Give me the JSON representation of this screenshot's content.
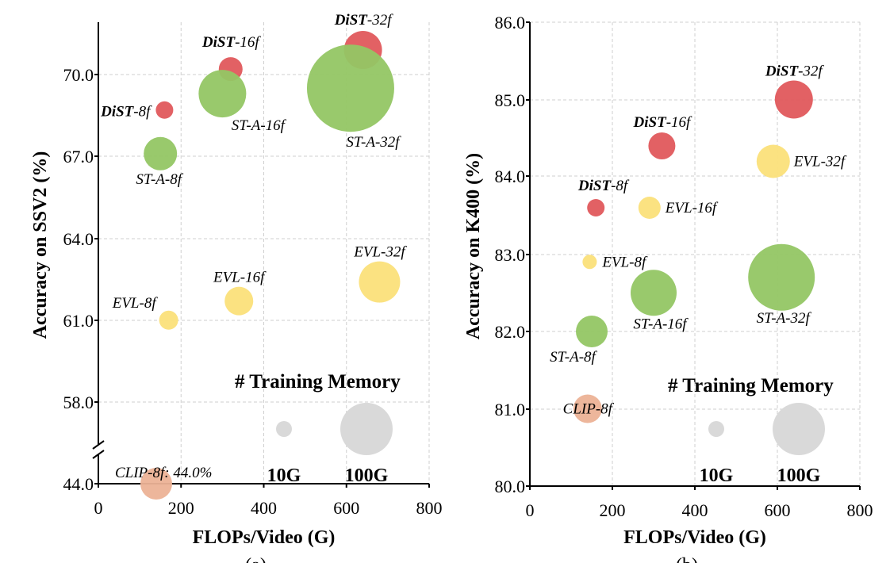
{
  "colors": {
    "dist": "#e0585c",
    "st_a": "#93c664",
    "evl": "#fbe07a",
    "clip": "#ecb296",
    "legend": "#d9d9d9"
  },
  "chart_data": [
    {
      "type": "scatter",
      "caption": "(a)",
      "xlabel": "FLOPs/Video (G)",
      "ylabel": "Accuracy on SSV2 (%)",
      "xlim": [
        0,
        800
      ],
      "x_ticks": [
        "0",
        "200",
        "400",
        "600",
        "800"
      ],
      "y_ticks": [
        "70.0",
        "67.0",
        "64.0",
        "61.0",
        "58.0",
        "44.0"
      ],
      "y_tick_values": [
        70,
        67,
        64,
        61,
        58,
        44
      ],
      "axis_break": true,
      "points": [
        {
          "label_prefix": "DiST",
          "label_suffix": "-8f",
          "family": "dist",
          "x": 160,
          "y": 68.7,
          "r": 11
        },
        {
          "label_prefix": "DiST",
          "label_suffix": "-16f",
          "family": "dist",
          "x": 320,
          "y": 70.2,
          "r": 15
        },
        {
          "label_prefix": "DiST",
          "label_suffix": "-32f",
          "family": "dist",
          "x": 640,
          "y": 70.9,
          "r": 24
        },
        {
          "label_prefix": "",
          "label_suffix": "ST-A-8f",
          "family": "st_a",
          "x": 150,
          "y": 67.1,
          "r": 21
        },
        {
          "label_prefix": "",
          "label_suffix": "ST-A-16f",
          "family": "st_a",
          "x": 300,
          "y": 69.3,
          "r": 30
        },
        {
          "label_prefix": "",
          "label_suffix": "ST-A-32f",
          "family": "st_a",
          "x": 610,
          "y": 69.5,
          "r": 55
        },
        {
          "label_prefix": "",
          "label_suffix": "EVL-8f",
          "family": "evl",
          "x": 170,
          "y": 61.0,
          "r": 12
        },
        {
          "label_prefix": "",
          "label_suffix": "EVL-16f",
          "family": "evl",
          "x": 340,
          "y": 61.7,
          "r": 18
        },
        {
          "label_prefix": "",
          "label_suffix": "EVL-32f",
          "family": "evl",
          "x": 680,
          "y": 62.4,
          "r": 26
        },
        {
          "label_prefix": "",
          "label_suffix": "CLIP-8f: 44.0%",
          "family": "clip",
          "x": 140,
          "y": 44.0,
          "r": 20
        }
      ],
      "legend": {
        "title": "# Training Memory",
        "small": "10G",
        "large": "100G"
      }
    },
    {
      "type": "scatter",
      "caption": "(b)",
      "xlabel": "FLOPs/Video (G)",
      "ylabel": "Accuracy on K400 (%)",
      "xlim": [
        0,
        800
      ],
      "ylim": [
        80,
        86
      ],
      "x_ticks": [
        "0",
        "200",
        "400",
        "600",
        "800"
      ],
      "y_ticks": [
        "86.0",
        "85.0",
        "84.0",
        "83.0",
        "82.0",
        "81.0",
        "80.0"
      ],
      "y_tick_values": [
        86,
        85,
        84,
        83,
        82,
        81,
        80
      ],
      "points": [
        {
          "label_prefix": "DiST",
          "label_suffix": "-8f",
          "family": "dist",
          "x": 160,
          "y": 83.6,
          "r": 11
        },
        {
          "label_prefix": "DiST",
          "label_suffix": "-16f",
          "family": "dist",
          "x": 320,
          "y": 84.4,
          "r": 17
        },
        {
          "label_prefix": "DiST",
          "label_suffix": "-32f",
          "family": "dist",
          "x": 640,
          "y": 85.0,
          "r": 24
        },
        {
          "label_prefix": "",
          "label_suffix": "ST-A-8f",
          "family": "st_a",
          "x": 150,
          "y": 82.0,
          "r": 20
        },
        {
          "label_prefix": "",
          "label_suffix": "ST-A-16f",
          "family": "st_a",
          "x": 300,
          "y": 82.5,
          "r": 29
        },
        {
          "label_prefix": "",
          "label_suffix": "ST-A-32f",
          "family": "st_a",
          "x": 610,
          "y": 82.7,
          "r": 42
        },
        {
          "label_prefix": "",
          "label_suffix": "EVL-8f",
          "family": "evl",
          "x": 145,
          "y": 82.9,
          "r": 9
        },
        {
          "label_prefix": "",
          "label_suffix": "EVL-16f",
          "family": "evl",
          "x": 290,
          "y": 83.6,
          "r": 14
        },
        {
          "label_prefix": "",
          "label_suffix": "EVL-32f",
          "family": "evl",
          "x": 590,
          "y": 84.2,
          "r": 21
        },
        {
          "label_prefix": "",
          "label_suffix": "CLIP-8f",
          "family": "clip",
          "x": 140,
          "y": 81.0,
          "r": 18
        }
      ],
      "legend": {
        "title": "# Training Memory",
        "small": "10G",
        "large": "100G"
      }
    }
  ]
}
